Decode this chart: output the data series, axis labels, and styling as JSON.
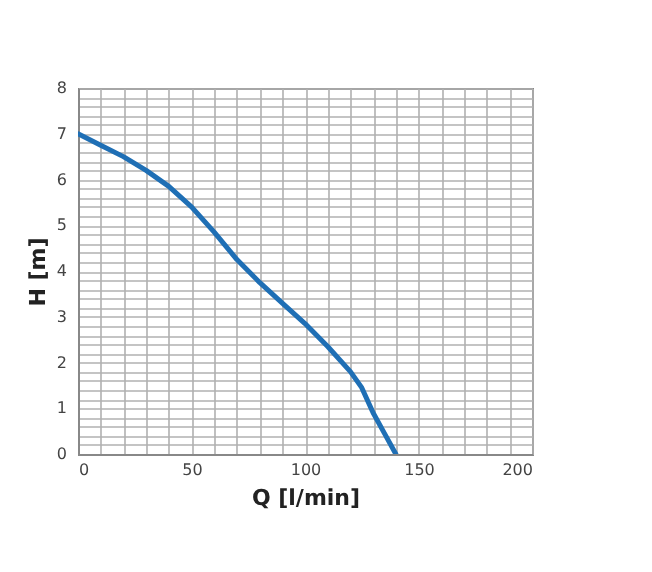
{
  "chart_data": {
    "type": "line",
    "xlabel": "Q [l/min]",
    "ylabel": "H [m]",
    "x": [
      0,
      10,
      20,
      30,
      40,
      50,
      60,
      70,
      80,
      90,
      100,
      110,
      120,
      125,
      130,
      135,
      140
    ],
    "series": [
      {
        "color": "#1f6fb5",
        "values": [
          7,
          6.75,
          6.5,
          6.2,
          5.85,
          5.4,
          4.85,
          4.25,
          3.75,
          3.3,
          2.85,
          2.35,
          1.8,
          1.45,
          0.9,
          0.45,
          0
        ]
      }
    ],
    "xlim": [
      0,
      200
    ],
    "xticks": [
      0,
      {
        "value": 10,
        "label": null
      },
      {
        "value": 20,
        "label": null
      },
      {
        "value": 30,
        "label": null
      },
      {
        "value": 40,
        "label": null
      },
      50,
      {
        "value": 60,
        "label": null
      },
      {
        "value": 70,
        "label": null
      },
      {
        "value": 80,
        "label": null
      },
      {
        "value": 90,
        "label": null
      },
      100,
      {
        "value": 110,
        "label": null
      },
      {
        "value": 120,
        "label": null
      },
      {
        "value": 130,
        "label": null
      },
      {
        "value": 140,
        "label": null
      },
      150,
      {
        "value": 160,
        "label": null
      },
      {
        "value": 170,
        "label": null
      },
      {
        "value": 180,
        "label": null
      },
      {
        "value": 190,
        "label": null
      },
      200
    ],
    "ylim": [
      0,
      8
    ],
    "yticks": [
      0,
      {
        "value": 0.2,
        "label": null
      },
      {
        "value": 0.4,
        "label": null
      },
      {
        "value": 0.6,
        "label": null
      },
      {
        "value": 0.8,
        "label": null
      },
      1,
      {
        "value": 1.2,
        "label": null
      },
      {
        "value": 1.4,
        "label": null
      },
      {
        "value": 1.6,
        "label": null
      },
      {
        "value": 1.8,
        "label": null
      },
      2,
      {
        "value": 2.2,
        "label": null
      },
      {
        "value": 2.4,
        "label": null
      },
      {
        "value": 2.6,
        "label": null
      },
      {
        "value": 2.8,
        "label": null
      },
      3,
      {
        "value": 3.2,
        "label": null
      },
      {
        "value": 3.4,
        "label": null
      },
      {
        "value": 3.6,
        "label": null
      },
      {
        "value": 3.8,
        "label": null
      },
      4,
      {
        "value": 4.2,
        "label": null
      },
      {
        "value": 4.4,
        "label": null
      },
      {
        "value": 4.6,
        "label": null
      },
      {
        "value": 4.8,
        "label": null
      },
      5,
      {
        "value": 5.2,
        "label": null
      },
      {
        "value": 5.4,
        "label": null
      },
      {
        "value": 5.6,
        "label": null
      },
      {
        "value": 5.8,
        "label": null
      },
      6,
      {
        "value": 6.2,
        "label": null
      },
      {
        "value": 6.4,
        "label": null
      },
      {
        "value": 6.6,
        "label": null
      },
      {
        "value": 6.8,
        "label": null
      },
      7,
      {
        "value": 7.2,
        "label": null
      },
      {
        "value": 7.4,
        "label": null
      },
      {
        "value": 7.6,
        "label": null
      },
      {
        "value": 7.8,
        "label": null
      },
      8
    ],
    "grid": true,
    "marker": "none",
    "line_style": "solid"
  }
}
